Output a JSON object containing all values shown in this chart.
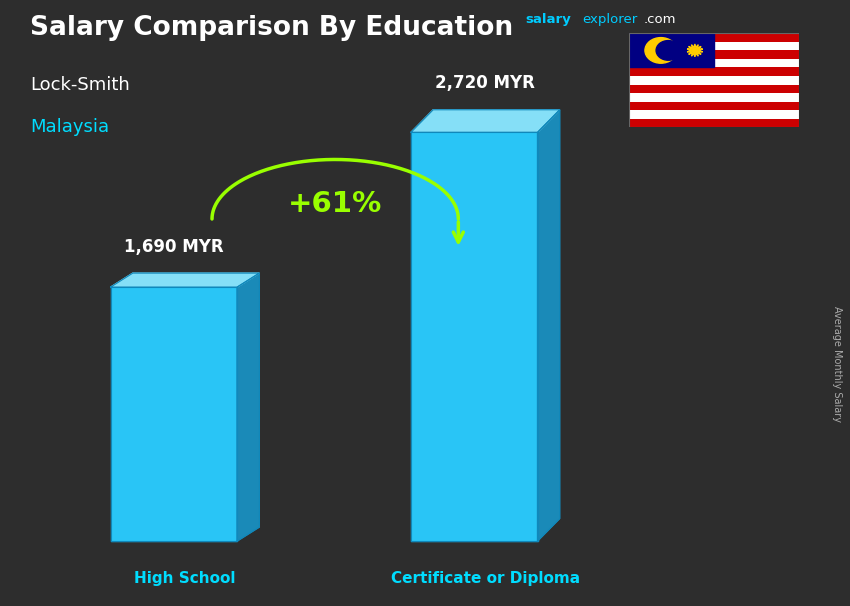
{
  "title_main": "Salary Comparison By Education",
  "subtitle_job": "Lock-Smith",
  "subtitle_country": "Malaysia",
  "categories": [
    "High School",
    "Certificate or Diploma"
  ],
  "values": [
    1690,
    2720
  ],
  "value_labels": [
    "1,690 MYR",
    "2,720 MYR"
  ],
  "pct_change": "+61%",
  "bar_face_color": "#29c5f6",
  "bar_side_color": "#1a8ab8",
  "bar_top_color": "#85dff7",
  "bg_color": "#2d2d2d",
  "title_color": "#ffffff",
  "subtitle_job_color": "#ffffff",
  "subtitle_country_color": "#00ddff",
  "value_label_color": "#ffffff",
  "category_label_color": "#00ddff",
  "pct_color": "#99ff00",
  "arrow_color": "#99ff00",
  "site_salary_color": "#00ccff",
  "site_explorer_color": "#00ccff",
  "site_com_color": "#ffffff",
  "side_label": "Average Monthly Salary",
  "figsize": [
    8.5,
    6.06
  ],
  "dpi": 100
}
